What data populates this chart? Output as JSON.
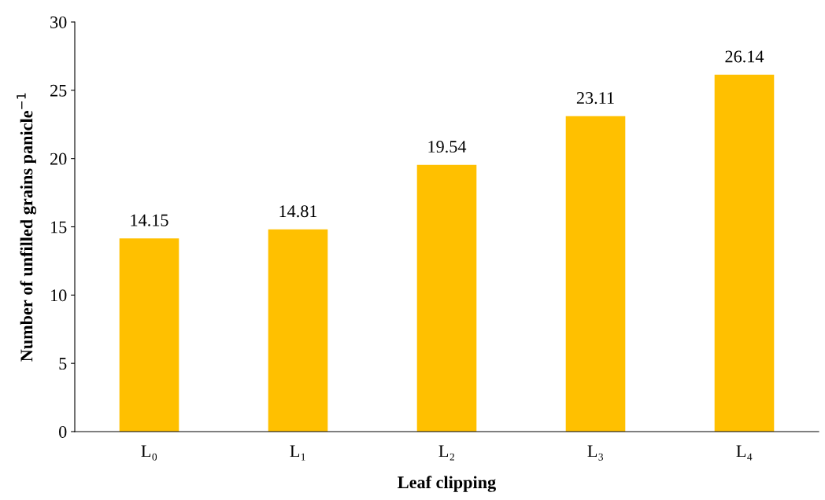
{
  "chart_data": {
    "type": "bar",
    "xlabel": "Leaf clipping",
    "ylabel": "Number of unfilled grains panicle$^{−1}$",
    "categories": [
      "L₀",
      "L₁",
      "L₂",
      "L₃",
      "L₄"
    ],
    "values": [
      14.15,
      14.81,
      19.54,
      23.11,
      26.14
    ],
    "color": "#ffc000",
    "ylim": [
      0,
      30
    ],
    "yticks": [
      0,
      5,
      10,
      15,
      20,
      25,
      30
    ],
    "data_labels": true
  }
}
